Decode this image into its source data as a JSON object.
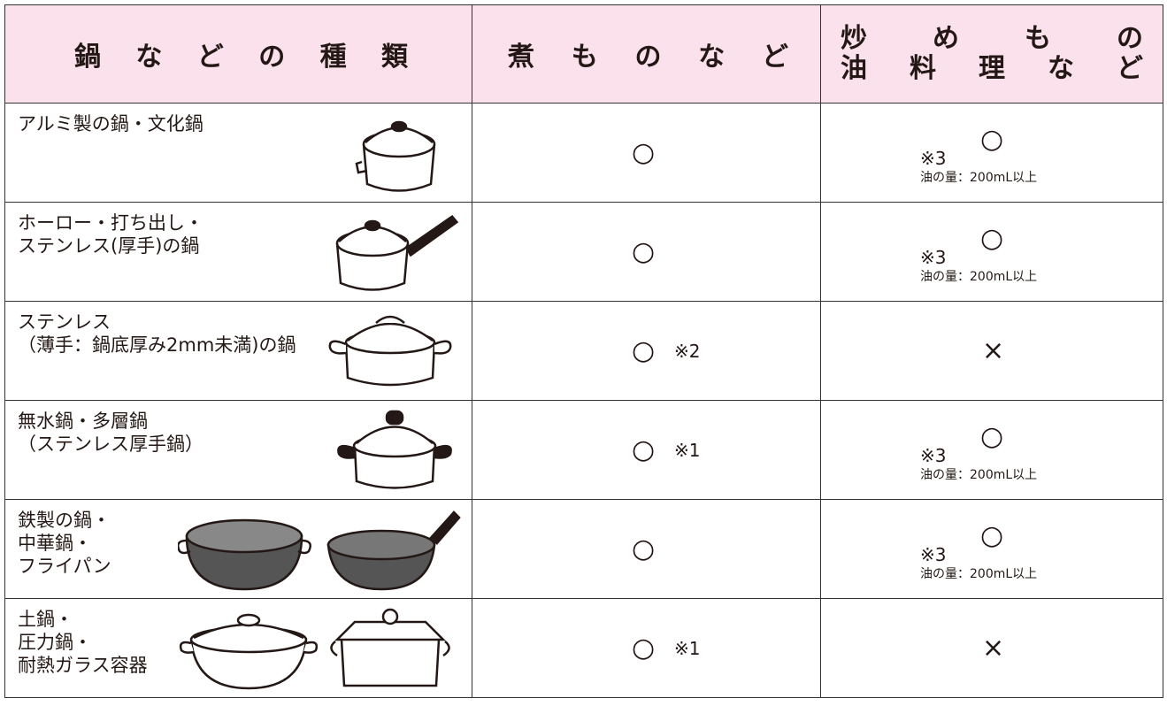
{
  "table": {
    "header": [
      "鍋などの種類",
      "煮ものなど",
      [
        "炒めもの",
        "油料理など"
      ]
    ],
    "rows": [
      {
        "name": [
          "アルミ製の鍋・文化鍋"
        ],
        "simmer": {
          "mark": "○"
        },
        "fry": {
          "mark": "○",
          "note": "※3",
          "oil": "油の量：200mL以上"
        }
      },
      {
        "name": [
          "ホーロー・打ち出し・",
          "ステンレス(厚手)の鍋"
        ],
        "simmer": {
          "mark": "○"
        },
        "fry": {
          "mark": "○",
          "note": "※3",
          "oil": "油の量：200mL以上"
        }
      },
      {
        "name": [
          "ステンレス",
          "（薄手：鍋底厚み2mm未満)の鍋"
        ],
        "simmer": {
          "mark": "○",
          "note": "※2"
        },
        "fry": {
          "mark": "×"
        }
      },
      {
        "name": [
          "無水鍋・多層鍋",
          "（ステンレス厚手鍋）"
        ],
        "simmer": {
          "mark": "○",
          "note": "※1"
        },
        "fry": {
          "mark": "○",
          "note": "※3",
          "oil": "油の量：200mL以上"
        }
      },
      {
        "name": [
          "鉄製の鍋・",
          "中華鍋・",
          "フライパン"
        ],
        "simmer": {
          "mark": "○"
        },
        "fry": {
          "mark": "○",
          "note": "※3",
          "oil": "油の量：200mL以上"
        }
      },
      {
        "name": [
          "土鍋・",
          "圧力鍋・",
          "耐熱ガラス容器"
        ],
        "simmer": {
          "mark": "○",
          "note": "※1"
        },
        "fry": {
          "mark": "×"
        }
      }
    ]
  }
}
